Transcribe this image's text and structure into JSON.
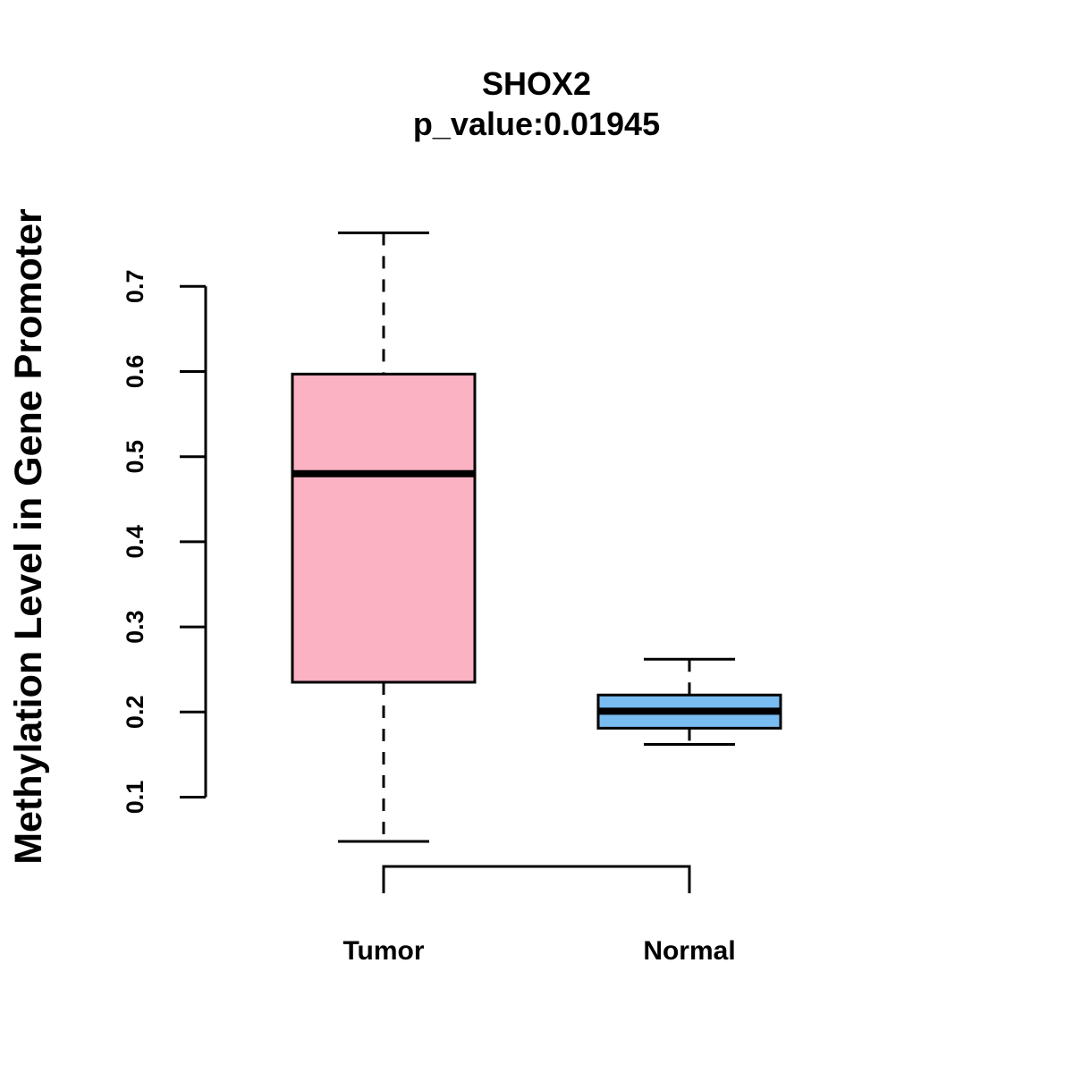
{
  "chart_data": {
    "type": "boxplot",
    "title": "SHOX2",
    "subtitle": "p_value:0.01945",
    "xlabel": "",
    "ylabel": "Methylation Level in Gene Promoter",
    "ylim": [
      0.1,
      0.7
    ],
    "yticks": [
      0.1,
      0.2,
      0.3,
      0.4,
      0.5,
      0.6,
      0.7
    ],
    "ytick_labels": [
      "0.1",
      "0.2",
      "0.3",
      "0.4",
      "0.5",
      "0.6",
      "0.7"
    ],
    "categories": [
      "Tumor",
      "Normal"
    ],
    "series": [
      {
        "name": "Tumor",
        "color": "#FBB2C3",
        "whisker_low": 0.048,
        "q1": 0.235,
        "median": 0.48,
        "q3": 0.597,
        "whisker_high": 0.763
      },
      {
        "name": "Normal",
        "color": "#79BCF2",
        "whisker_low": 0.162,
        "q1": 0.181,
        "median": 0.201,
        "q3": 0.22,
        "whisker_high": 0.262
      }
    ],
    "comparison_bracket": {
      "between": [
        "Tumor",
        "Normal"
      ]
    }
  }
}
